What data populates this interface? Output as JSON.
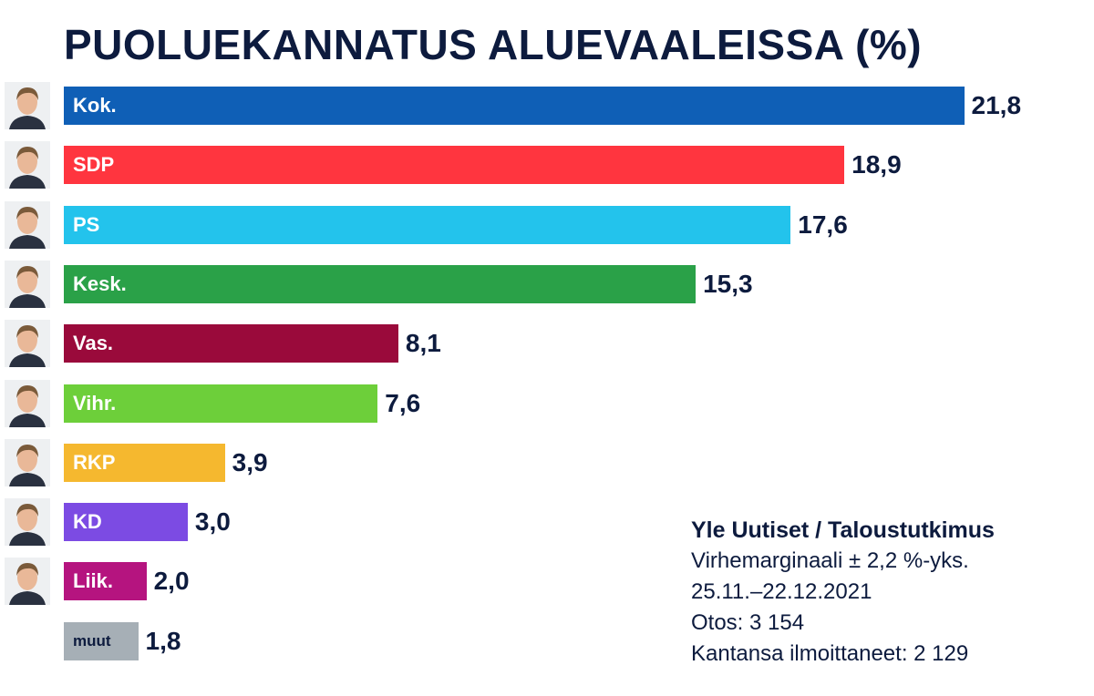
{
  "chart_data": {
    "type": "bar",
    "orientation": "horizontal",
    "title": "PUOLUEKANNATUS ALUEVAALEISSA (%)",
    "xlabel": "",
    "ylabel": "",
    "xlim": [
      0,
      25
    ],
    "grid": false,
    "categories": [
      "Kok.",
      "SDP",
      "PS",
      "Kesk.",
      "Vas.",
      "Vihr.",
      "RKP",
      "KD",
      "Liik.",
      "muut"
    ],
    "values": [
      21.8,
      18.9,
      17.6,
      15.3,
      8.1,
      7.6,
      3.9,
      3.0,
      2.0,
      1.8
    ],
    "value_labels": [
      "21,8",
      "18,9",
      "17,6",
      "15,3",
      "8,1",
      "7,6",
      "3,9",
      "3,0",
      "2,0",
      "1,8"
    ],
    "colors": [
      "#0f5fb6",
      "#ff353f",
      "#23c3ec",
      "#2aa148",
      "#9a0a3b",
      "#6dcf3a",
      "#f5b82f",
      "#7c4be3",
      "#b5147f",
      "#a6afb6"
    ],
    "has_portrait": [
      true,
      true,
      true,
      true,
      true,
      true,
      true,
      true,
      true,
      false
    ]
  },
  "source": {
    "title": "Yle Uutiset / Taloustutkimus",
    "lines": [
      "Virhemarginaali ± 2,2 %-yks.",
      "25.11.–22.12.2021",
      "Otos: 3 154",
      "Kantansa ilmoittaneet: 2 129"
    ]
  }
}
